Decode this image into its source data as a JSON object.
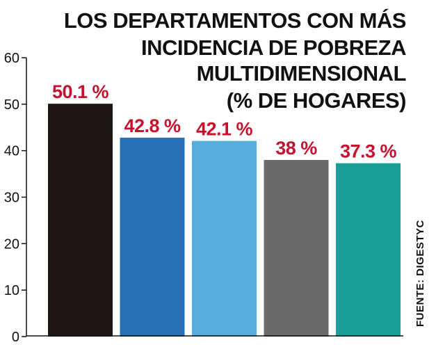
{
  "chart_data": {
    "type": "bar",
    "title_lines": [
      "LOS DEPARTAMENTOS CON MÁS",
      "INCIDENCIA DE POBREZA",
      "MULTIDIMENSIONAL",
      "(% DE HOGARES)"
    ],
    "values": [
      50.1,
      42.8,
      42.1,
      38,
      37.3
    ],
    "value_labels": [
      "50.1 %",
      "42.8 %",
      "42.1 %",
      "38 %",
      "37.3 %"
    ],
    "colors": [
      "#1f1714",
      "#2870b5",
      "#58acde",
      "#6a6a6d",
      "#1a9f98"
    ],
    "ylim": [
      0,
      60
    ],
    "yticks": [
      "0",
      "10",
      "20",
      "30",
      "40",
      "50",
      "60"
    ],
    "source": "FUENTE: DIGESTYC",
    "grid": false
  }
}
